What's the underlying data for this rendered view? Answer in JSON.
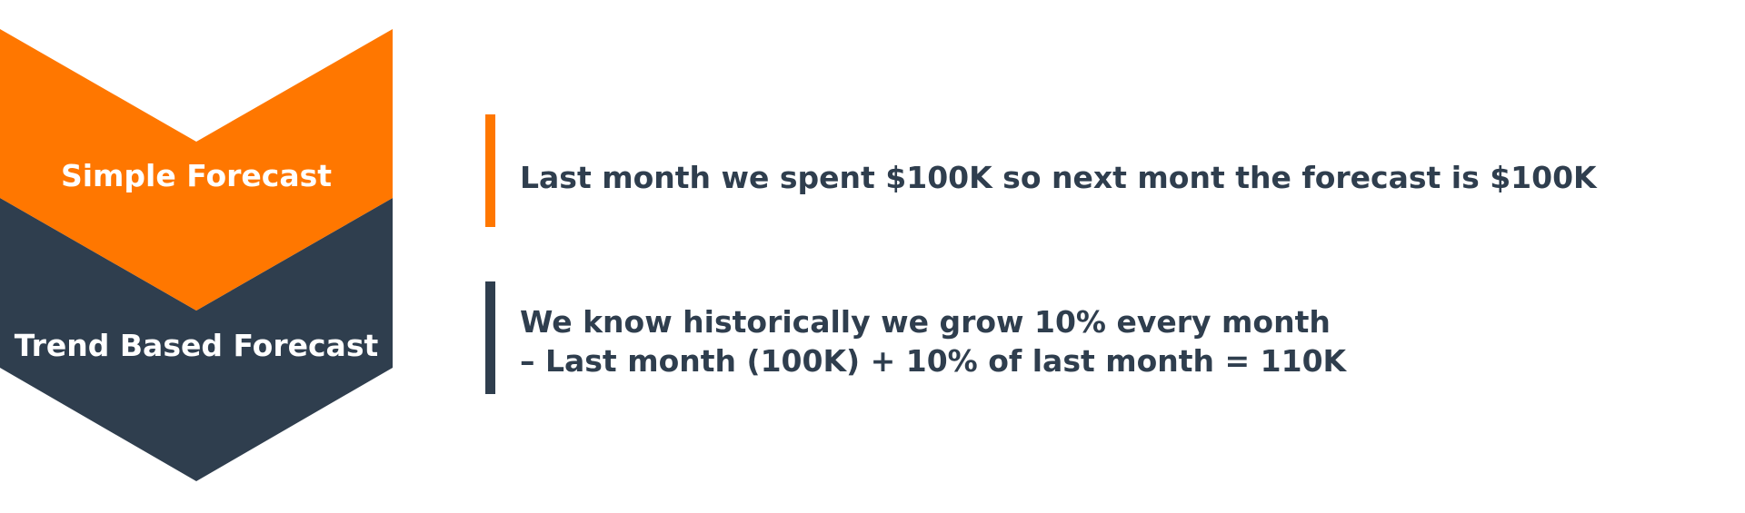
{
  "colors": {
    "orange": "#ff7700",
    "slate": "#2f3e4e",
    "white": "#ffffff"
  },
  "steps": [
    {
      "label": "Simple Forecast",
      "description": [
        "Last month we spent $100K so next mont the forecast is $100K"
      ]
    },
    {
      "label": "Trend Based Forecast",
      "description": [
        "We know historically we grow 10% every month",
        "– Last month (100K) + 10% of last month = 110K"
      ]
    }
  ]
}
